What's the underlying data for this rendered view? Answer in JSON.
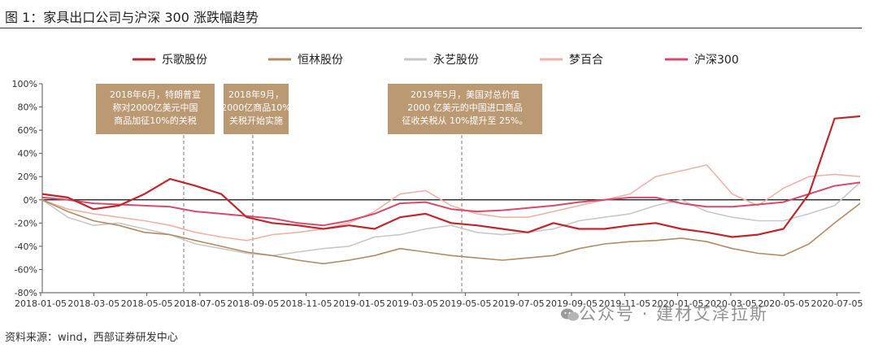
{
  "figure": {
    "title": "图 1：家具出口公司与沪深 300 涨跌幅趋势",
    "source": "资料来源：wind，西部证券研发中心",
    "watermark": "公众号 · 建材艾泽拉斯"
  },
  "chart_data": {
    "type": "line",
    "title": "家具出口公司与沪深 300 涨跌幅趋势",
    "xlabel": "",
    "ylabel": "",
    "ylim": [
      -80,
      100
    ],
    "yticks": [
      "100%",
      "80%",
      "60%",
      "40%",
      "20%",
      "0%",
      "-20%",
      "-40%",
      "-60%",
      "-80%"
    ],
    "ytick_values": [
      100,
      80,
      60,
      40,
      20,
      0,
      -20,
      -40,
      -60,
      -80
    ],
    "xticks": [
      "2018-01-05",
      "2018-03-05",
      "2018-05-05",
      "2018-07-05",
      "2018-09-05",
      "2018-11-05",
      "2019-01-05",
      "2019-03-05",
      "2019-05-05",
      "2019-07-05",
      "2019-09-05",
      "2019-11-05",
      "2020-01-05",
      "2020-03-05",
      "2020-05-05",
      "2020-07-05"
    ],
    "x": [
      "2018-01",
      "2018-02",
      "2018-03",
      "2018-04",
      "2018-05",
      "2018-06",
      "2018-07",
      "2018-08",
      "2018-09",
      "2018-10",
      "2018-11",
      "2018-12",
      "2019-01",
      "2019-02",
      "2019-03",
      "2019-04",
      "2019-05",
      "2019-06",
      "2019-07",
      "2019-08",
      "2019-09",
      "2019-10",
      "2019-11",
      "2019-12",
      "2020-01",
      "2020-02",
      "2020-03",
      "2020-04",
      "2020-05",
      "2020-06",
      "2020-07",
      "2020-08",
      "2020-09"
    ],
    "series": [
      {
        "name": "乐歌股份",
        "color": "#c0272d",
        "width": 2.2,
        "values": [
          5,
          2,
          -8,
          -5,
          5,
          18,
          12,
          5,
          -15,
          -20,
          -22,
          -25,
          -22,
          -25,
          -15,
          -12,
          -20,
          -22,
          -25,
          -28,
          -20,
          -25,
          -25,
          -22,
          -20,
          -25,
          -28,
          -32,
          -30,
          -25,
          5,
          70,
          72
        ]
      },
      {
        "name": "恒林股份",
        "color": "#b38b63",
        "width": 1.6,
        "values": [
          0,
          -10,
          -18,
          -22,
          -28,
          -30,
          -35,
          -40,
          -45,
          -48,
          -52,
          -55,
          -52,
          -48,
          -42,
          -45,
          -48,
          -50,
          -52,
          -50,
          -48,
          -42,
          -38,
          -36,
          -35,
          -33,
          -36,
          -42,
          -46,
          -48,
          -38,
          -20,
          -3
        ]
      },
      {
        "name": "永艺股份",
        "color": "#c8c8c8",
        "width": 1.6,
        "values": [
          0,
          -15,
          -22,
          -20,
          -25,
          -30,
          -38,
          -42,
          -46,
          -48,
          -45,
          -42,
          -40,
          -32,
          -30,
          -25,
          -22,
          -28,
          -30,
          -28,
          -25,
          -18,
          -15,
          -12,
          -5,
          0,
          -10,
          -15,
          -18,
          -18,
          -12,
          -5,
          15
        ]
      },
      {
        "name": "梦百合",
        "color": "#f0b2a8",
        "width": 1.6,
        "values": [
          0,
          -8,
          -12,
          -15,
          -18,
          -22,
          -28,
          -32,
          -35,
          -30,
          -28,
          -25,
          -20,
          -10,
          5,
          8,
          -5,
          -12,
          -15,
          -15,
          -10,
          -5,
          0,
          5,
          20,
          25,
          30,
          5,
          -5,
          10,
          20,
          22,
          20
        ]
      },
      {
        "name": "沪深300",
        "color": "#d94a6a",
        "width": 2.0,
        "values": [
          2,
          0,
          -3,
          -4,
          -5,
          -6,
          -10,
          -12,
          -14,
          -16,
          -20,
          -22,
          -18,
          -12,
          -3,
          -2,
          -8,
          -10,
          -9,
          -7,
          -5,
          -2,
          0,
          2,
          2,
          -3,
          -6,
          -6,
          -4,
          -2,
          5,
          12,
          15
        ]
      }
    ],
    "annotations": [
      {
        "lines": [
          "2018年6月，特朗普宣",
          "称对2000亿美元中国",
          "商品加征10%的关税"
        ],
        "x_date": "2018-06"
      },
      {
        "lines": [
          "2018年9月，",
          "2000亿商品10%",
          "关税开始实施"
        ],
        "x_date": "2018-09"
      },
      {
        "lines": [
          "2019年5月，美国对总价值",
          "2000 亿美元的中国进口商品",
          "征收关税从 10%提升至 25%。"
        ],
        "x_date": "2019-05"
      }
    ],
    "legend_position": "top"
  }
}
